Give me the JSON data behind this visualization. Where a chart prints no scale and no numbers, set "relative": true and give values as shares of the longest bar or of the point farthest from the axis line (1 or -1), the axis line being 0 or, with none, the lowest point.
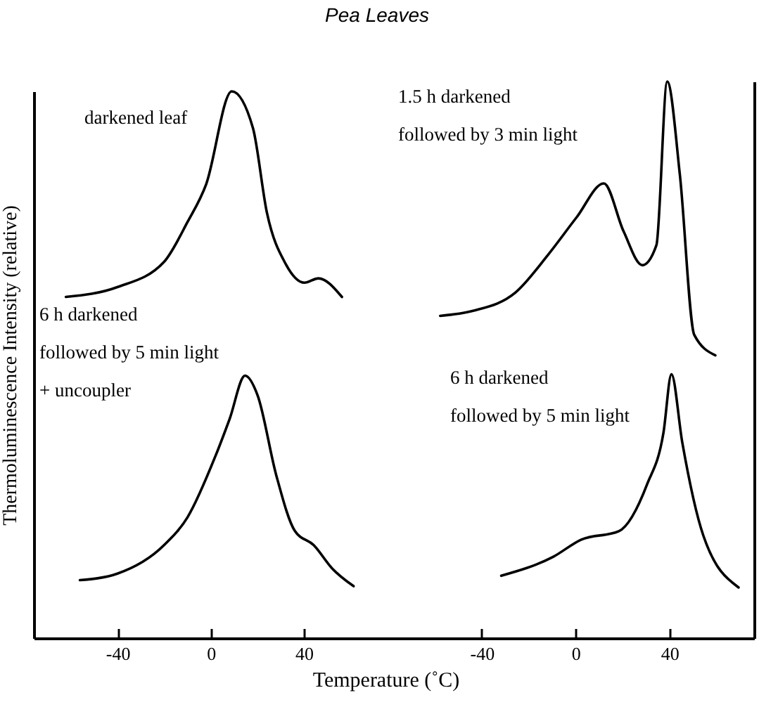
{
  "chart_data": [
    {
      "type": "line",
      "title": "Pea Leaves",
      "xlabel": "Temperature (˚C)",
      "ylabel": "Thermoluminescence Intensity  (relative)",
      "relative": true,
      "xlim": [
        -76,
        75
      ],
      "xticks": [
        -40,
        {
          "value": 0,
          "label": "0"
        },
        40
      ],
      "tick_labels": "x",
      "series": [
        {
          "name": "darkened leaf",
          "color": "#000000",
          "x": [
            -62.2,
            -40.1,
            -20.1,
            -10,
            -2,
            9,
            18.1,
            24.1,
            32.2,
            40.2,
            46.2,
            56.3
          ],
          "values": [
            0.624,
            0.642,
            0.688,
            0.761,
            0.83,
            1,
            0.933,
            0.778,
            0.684,
            0.65,
            0.658,
            0.624
          ]
        },
        {
          "name": "6 h darkened\nfollowed by 5 min light\n+ uncoupler",
          "color": "#000000",
          "x": [
            -56.2,
            -40.1,
            -20.1,
            -10,
            2,
            8.1,
            14.7,
            20.1,
            28.1,
            36.1,
            44.2,
            52.2,
            61.3
          ],
          "values": [
            0.106,
            0.118,
            0.17,
            0.221,
            0.333,
            0.401,
            0.48,
            0.444,
            0.298,
            0.196,
            0.17,
            0.127,
            0.095
          ]
        }
      ]
    },
    {
      "type": "line",
      "relative": true,
      "xlim": [
        -81,
        76
      ],
      "xticks": [
        -40,
        0,
        40
      ],
      "tick_labels": "x",
      "series": [
        {
          "name": "1.5 h darkened\nfollowed by 3 min light",
          "color": "#000000",
          "x": [
            -57.7,
            -43.7,
            -25.6,
            -11.7,
            0.4,
            12,
            20.4,
            28.4,
            34.4,
            39,
            44.4,
            50.5,
            59.5
          ],
          "values": [
            0.579,
            0.588,
            0.621,
            0.689,
            0.756,
            0.817,
            0.731,
            0.67,
            0.706,
            1,
            0.832,
            0.545,
            0.508
          ]
        },
        {
          "name": "6 h darkened\nfollowed by 5 min light",
          "color": "#000000",
          "x": [
            -31.7,
            -9.6,
            2.4,
            18.4,
            30.4,
            37.4,
            40.8,
            45.4,
            54.4,
            69.4
          ],
          "values": [
            0.112,
            0.146,
            0.177,
            0.192,
            0.276,
            0.369,
            0.474,
            0.352,
            0.184,
            0.091
          ]
        }
      ]
    }
  ]
}
